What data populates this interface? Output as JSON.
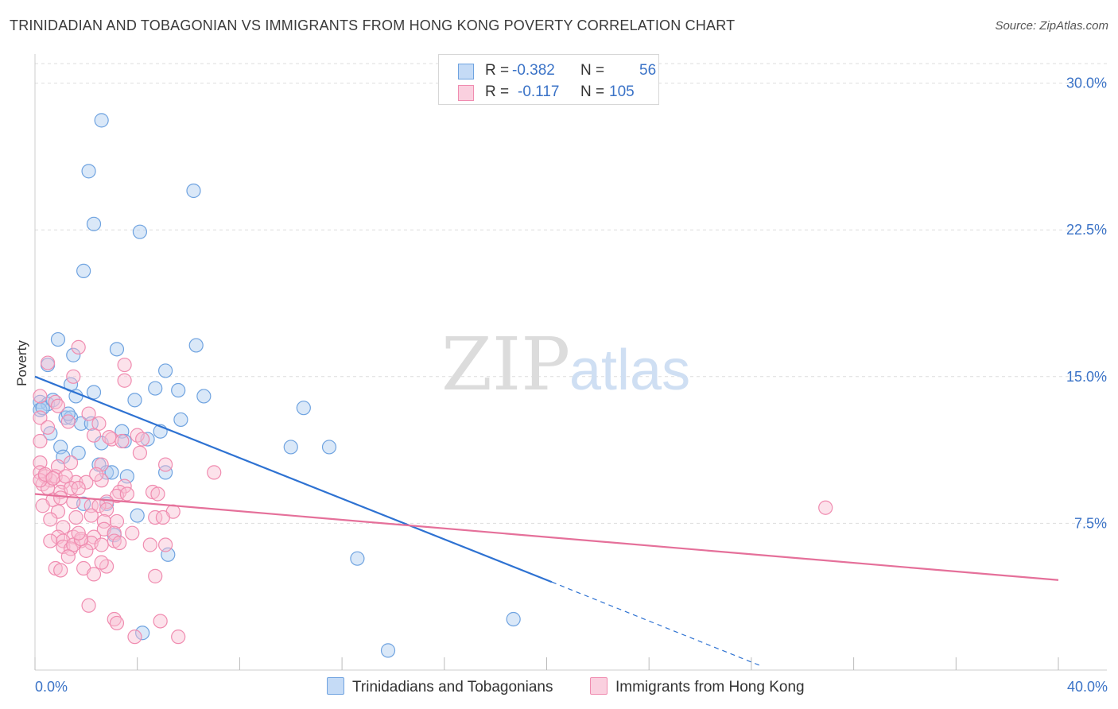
{
  "title": "TRINIDADIAN AND TOBAGONIAN VS IMMIGRANTS FROM HONG KONG POVERTY CORRELATION CHART",
  "source": "Source: ZipAtlas.com",
  "watermark": {
    "zip": "ZIP",
    "atlas": "atlas"
  },
  "legend": {
    "rows": [
      {
        "r_label": "R =",
        "r_value": "-0.382",
        "n_label": "N =",
        "n_value": "56",
        "color": "#6fa3e0"
      },
      {
        "r_label": "R =",
        "r_value": "-0.117",
        "n_label": "N =",
        "n_value": "105",
        "color": "#f08cb0"
      }
    ]
  },
  "chart_data": {
    "type": "scatter",
    "title": "TRINIDADIAN AND TOBAGONIAN VS IMMIGRANTS FROM HONG KONG POVERTY CORRELATION CHART",
    "xlabel": "",
    "ylabel": "Poverty",
    "xlim": [
      0,
      40
    ],
    "ylim": [
      0,
      31
    ],
    "x_tick_labels": [
      {
        "value": 0,
        "label": "0.0%"
      },
      {
        "value": 40,
        "label": "40.0%"
      }
    ],
    "x_minor_ticks": [
      0,
      4,
      8,
      12,
      16,
      20,
      24,
      28,
      32,
      36,
      40
    ],
    "y_ticks": [
      {
        "value": 7.5,
        "label": "7.5%"
      },
      {
        "value": 15,
        "label": "15.0%"
      },
      {
        "value": 22.5,
        "label": "22.5%"
      },
      {
        "value": 30,
        "label": "30.0%"
      }
    ],
    "grid": true,
    "series": [
      {
        "name": "Trinidadians and Tobagonians",
        "color": "#6fa3e0",
        "fill": "#aecbf0",
        "line_color": "#2e72d2",
        "points": [
          [
            2.6,
            28.1
          ],
          [
            2.1,
            25.5
          ],
          [
            6.2,
            24.5
          ],
          [
            2.3,
            22.8
          ],
          [
            4.1,
            22.4
          ],
          [
            1.9,
            20.4
          ],
          [
            0.9,
            16.9
          ],
          [
            3.2,
            16.4
          ],
          [
            6.3,
            16.6
          ],
          [
            0.5,
            15.6
          ],
          [
            1.5,
            16.1
          ],
          [
            5.1,
            15.3
          ],
          [
            1.4,
            14.6
          ],
          [
            4.7,
            14.4
          ],
          [
            5.6,
            14.3
          ],
          [
            2.3,
            14.2
          ],
          [
            1.6,
            14.0
          ],
          [
            6.6,
            14.0
          ],
          [
            3.9,
            13.8
          ],
          [
            0.2,
            13.7
          ],
          [
            0.5,
            13.6
          ],
          [
            0.2,
            13.3
          ],
          [
            0.3,
            13.4
          ],
          [
            0.7,
            13.8
          ],
          [
            1.2,
            12.9
          ],
          [
            1.4,
            12.9
          ],
          [
            5.7,
            12.8
          ],
          [
            1.8,
            12.6
          ],
          [
            2.2,
            12.6
          ],
          [
            0.6,
            12.1
          ],
          [
            3.4,
            12.2
          ],
          [
            4.9,
            12.2
          ],
          [
            4.4,
            11.8
          ],
          [
            1.0,
            11.4
          ],
          [
            2.6,
            11.6
          ],
          [
            3.5,
            11.7
          ],
          [
            1.7,
            11.1
          ],
          [
            1.1,
            10.9
          ],
          [
            10.0,
            11.4
          ],
          [
            11.5,
            11.4
          ],
          [
            10.5,
            13.4
          ],
          [
            2.5,
            10.5
          ],
          [
            2.8,
            10.1
          ],
          [
            3.0,
            10.1
          ],
          [
            3.6,
            9.9
          ],
          [
            5.1,
            10.1
          ],
          [
            1.9,
            8.5
          ],
          [
            2.8,
            8.5
          ],
          [
            4.0,
            7.9
          ],
          [
            3.1,
            6.9
          ],
          [
            5.2,
            5.9
          ],
          [
            12.6,
            5.7
          ],
          [
            18.7,
            2.6
          ],
          [
            4.2,
            1.9
          ],
          [
            13.8,
            1.0
          ],
          [
            1.3,
            13.1
          ]
        ],
        "trend": {
          "x1": 0,
          "y1": 15.0,
          "x2": 20.2,
          "y2": 4.5,
          "dashed_to_x": 28.4,
          "dashed_to_y": 0.2
        }
      },
      {
        "name": "Immigrants from Hong Kong",
        "color": "#f08cb0",
        "fill": "#f8bfd3",
        "line_color": "#e5709a",
        "points": [
          [
            1.7,
            16.5
          ],
          [
            0.5,
            15.7
          ],
          [
            3.5,
            15.6
          ],
          [
            1.5,
            15.0
          ],
          [
            3.5,
            14.8
          ],
          [
            0.2,
            14.0
          ],
          [
            0.8,
            13.7
          ],
          [
            0.9,
            13.5
          ],
          [
            2.1,
            13.1
          ],
          [
            0.2,
            12.9
          ],
          [
            2.5,
            12.6
          ],
          [
            2.3,
            12.0
          ],
          [
            4.0,
            12.0
          ],
          [
            3.0,
            11.8
          ],
          [
            3.4,
            11.7
          ],
          [
            4.2,
            11.8
          ],
          [
            0.2,
            11.7
          ],
          [
            4.1,
            11.1
          ],
          [
            1.4,
            10.6
          ],
          [
            0.2,
            10.6
          ],
          [
            0.9,
            10.4
          ],
          [
            2.6,
            10.5
          ],
          [
            5.1,
            10.5
          ],
          [
            7.0,
            10.1
          ],
          [
            0.2,
            10.1
          ],
          [
            0.4,
            9.9
          ],
          [
            0.6,
            9.7
          ],
          [
            0.8,
            9.9
          ],
          [
            1.1,
            9.6
          ],
          [
            1.6,
            9.6
          ],
          [
            2.0,
            9.6
          ],
          [
            2.6,
            9.7
          ],
          [
            3.5,
            9.4
          ],
          [
            0.3,
            9.5
          ],
          [
            0.5,
            9.3
          ],
          [
            1.0,
            9.1
          ],
          [
            1.4,
            9.3
          ],
          [
            1.7,
            9.3
          ],
          [
            3.3,
            9.1
          ],
          [
            4.6,
            9.1
          ],
          [
            3.2,
            8.9
          ],
          [
            0.7,
            8.7
          ],
          [
            1.0,
            8.8
          ],
          [
            1.5,
            8.6
          ],
          [
            2.2,
            8.4
          ],
          [
            2.8,
            8.6
          ],
          [
            0.3,
            8.4
          ],
          [
            2.5,
            8.4
          ],
          [
            2.8,
            8.2
          ],
          [
            0.9,
            8.1
          ],
          [
            5.4,
            8.1
          ],
          [
            1.6,
            7.8
          ],
          [
            2.7,
            7.6
          ],
          [
            3.2,
            7.6
          ],
          [
            4.7,
            7.8
          ],
          [
            5.0,
            7.8
          ],
          [
            1.1,
            7.3
          ],
          [
            2.7,
            7.2
          ],
          [
            3.1,
            7.0
          ],
          [
            0.9,
            6.8
          ],
          [
            1.5,
            6.8
          ],
          [
            2.3,
            6.8
          ],
          [
            3.1,
            6.6
          ],
          [
            0.6,
            6.6
          ],
          [
            1.1,
            6.6
          ],
          [
            1.8,
            6.6
          ],
          [
            2.2,
            6.5
          ],
          [
            2.6,
            6.4
          ],
          [
            3.3,
            6.5
          ],
          [
            1.1,
            6.3
          ],
          [
            1.4,
            6.2
          ],
          [
            1.5,
            6.4
          ],
          [
            2.0,
            6.1
          ],
          [
            4.5,
            6.4
          ],
          [
            5.1,
            6.4
          ],
          [
            1.8,
            6.7
          ],
          [
            0.8,
            5.2
          ],
          [
            1.0,
            5.1
          ],
          [
            1.9,
            5.2
          ],
          [
            2.3,
            4.9
          ],
          [
            4.7,
            4.8
          ],
          [
            2.8,
            5.3
          ],
          [
            2.1,
            3.3
          ],
          [
            3.1,
            2.6
          ],
          [
            3.2,
            2.4
          ],
          [
            4.9,
            2.5
          ],
          [
            3.9,
            1.7
          ],
          [
            5.6,
            1.7
          ],
          [
            30.9,
            8.3
          ],
          [
            0.2,
            9.7
          ],
          [
            0.4,
            10.0
          ],
          [
            0.7,
            9.8
          ],
          [
            1.2,
            9.9
          ],
          [
            2.4,
            10.0
          ],
          [
            3.6,
            9.0
          ],
          [
            4.8,
            9.0
          ],
          [
            0.5,
            12.4
          ],
          [
            1.3,
            12.7
          ],
          [
            2.9,
            11.9
          ],
          [
            2.2,
            7.9
          ],
          [
            1.7,
            7.0
          ],
          [
            2.6,
            5.5
          ],
          [
            0.6,
            7.7
          ],
          [
            1.3,
            5.8
          ],
          [
            3.8,
            7.0
          ]
        ],
        "trend": {
          "x1": 0,
          "y1": 9.0,
          "x2": 40,
          "y2": 4.6
        }
      }
    ]
  },
  "bottom_legend": [
    {
      "label": "Trinidadians and Tobagonians",
      "color": "#6fa3e0",
      "fill": "#c5dbf6"
    },
    {
      "label": "Immigrants from Hong Kong",
      "color": "#f08cb0",
      "fill": "#fad0df"
    }
  ]
}
